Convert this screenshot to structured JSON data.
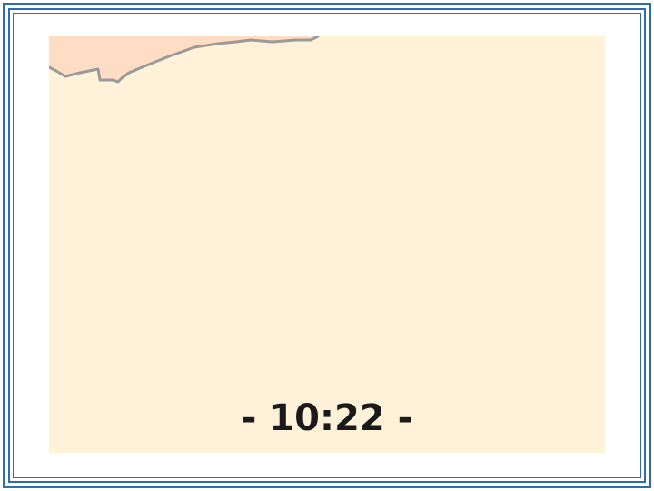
{
  "clock": {
    "time_label": "- 10:22 -"
  },
  "map": {
    "background_color": "#fff2d8",
    "region_fill_color": "#ffddc4",
    "border_color": "#9a9a9a"
  },
  "frame": {
    "border_color": "#2e6bb4"
  }
}
